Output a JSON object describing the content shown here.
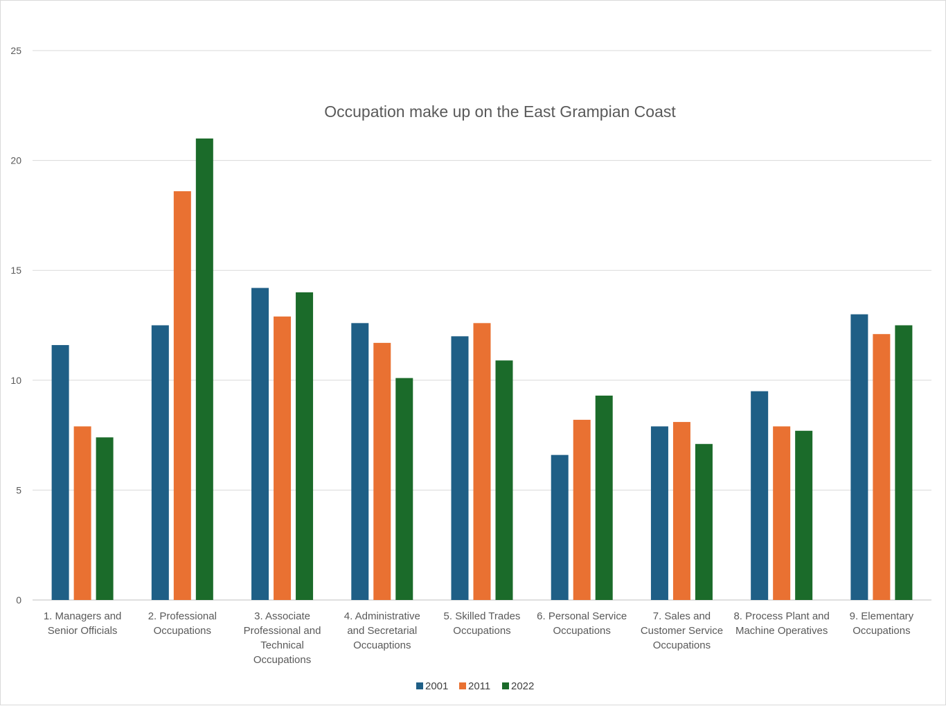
{
  "chart_data": {
    "type": "bar",
    "title": "Occupation make up on the East Grampian Coast",
    "xlabel": "",
    "ylabel": "",
    "ylim": [
      0,
      25
    ],
    "yticks": [
      0,
      5,
      10,
      15,
      20,
      25
    ],
    "grid": true,
    "legend_position": "bottom",
    "categories": [
      [
        "1. Managers and",
        "Senior Officials"
      ],
      [
        "2. Professional",
        "Occupations"
      ],
      [
        "3. Associate",
        "Professional and",
        "Technical",
        "Occupations"
      ],
      [
        "4. Administrative",
        "and Secretarial",
        "Occuaptions"
      ],
      [
        "5. Skilled Trades",
        "Occupations"
      ],
      [
        "6. Personal Service",
        "Occupations"
      ],
      [
        "7. Sales and",
        "Customer Service",
        "Occupations"
      ],
      [
        "8. Process Plant and",
        "Machine Operatives"
      ],
      [
        "9. Elementary",
        "Occupations"
      ]
    ],
    "series": [
      {
        "name": "2001",
        "color": "#1f5f86",
        "values": [
          11.6,
          12.5,
          14.2,
          12.6,
          12.0,
          6.6,
          7.9,
          9.5,
          13.0
        ]
      },
      {
        "name": "2011",
        "color": "#e97132",
        "values": [
          7.9,
          18.6,
          12.9,
          11.7,
          12.6,
          8.2,
          8.1,
          7.9,
          12.1
        ]
      },
      {
        "name": "2022",
        "color": "#1b6b2a",
        "values": [
          7.4,
          21.0,
          14.0,
          10.1,
          10.9,
          9.3,
          7.1,
          7.7,
          12.5
        ]
      }
    ]
  }
}
